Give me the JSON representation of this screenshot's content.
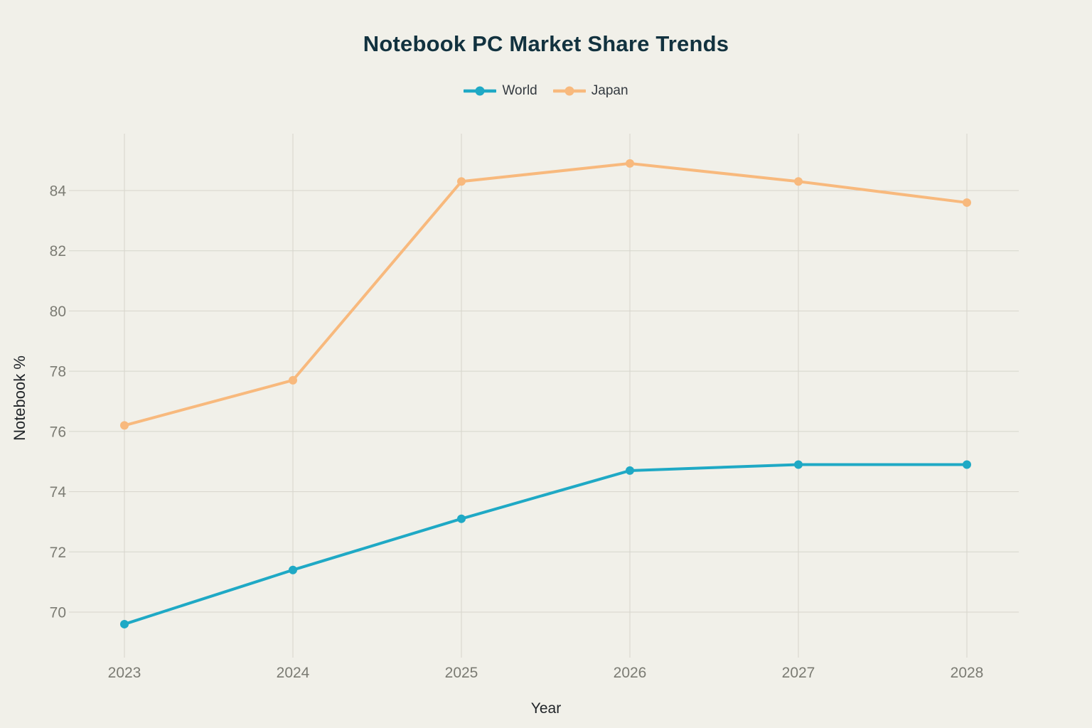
{
  "chart": {
    "background": "#f1f0e9",
    "grid_color": "#d6d5cc",
    "tick_color": "#7b7b73",
    "title_color": "#12323f",
    "axis_title_color": "#212529",
    "legend_text_color": "#343a40"
  },
  "chart_data": {
    "type": "line",
    "title": "Notebook PC Market Share Trends",
    "xlabel": "Year",
    "ylabel": "Notebook %",
    "categories": [
      "2023",
      "2024",
      "2025",
      "2026",
      "2027",
      "2028"
    ],
    "series": [
      {
        "name": "World",
        "color": "#1fa9c5",
        "values": [
          69.6,
          71.4,
          73.1,
          74.7,
          74.9,
          74.9
        ]
      },
      {
        "name": "Japan",
        "color": "#f8b97d",
        "values": [
          76.2,
          77.7,
          84.3,
          84.9,
          84.3,
          83.6
        ]
      }
    ],
    "yticks": [
      70,
      72,
      74,
      76,
      78,
      80,
      82,
      84
    ],
    "ylim": [
      68.5,
      85.9
    ],
    "grid": true,
    "legend_position": "top-center",
    "marker": "circle"
  }
}
